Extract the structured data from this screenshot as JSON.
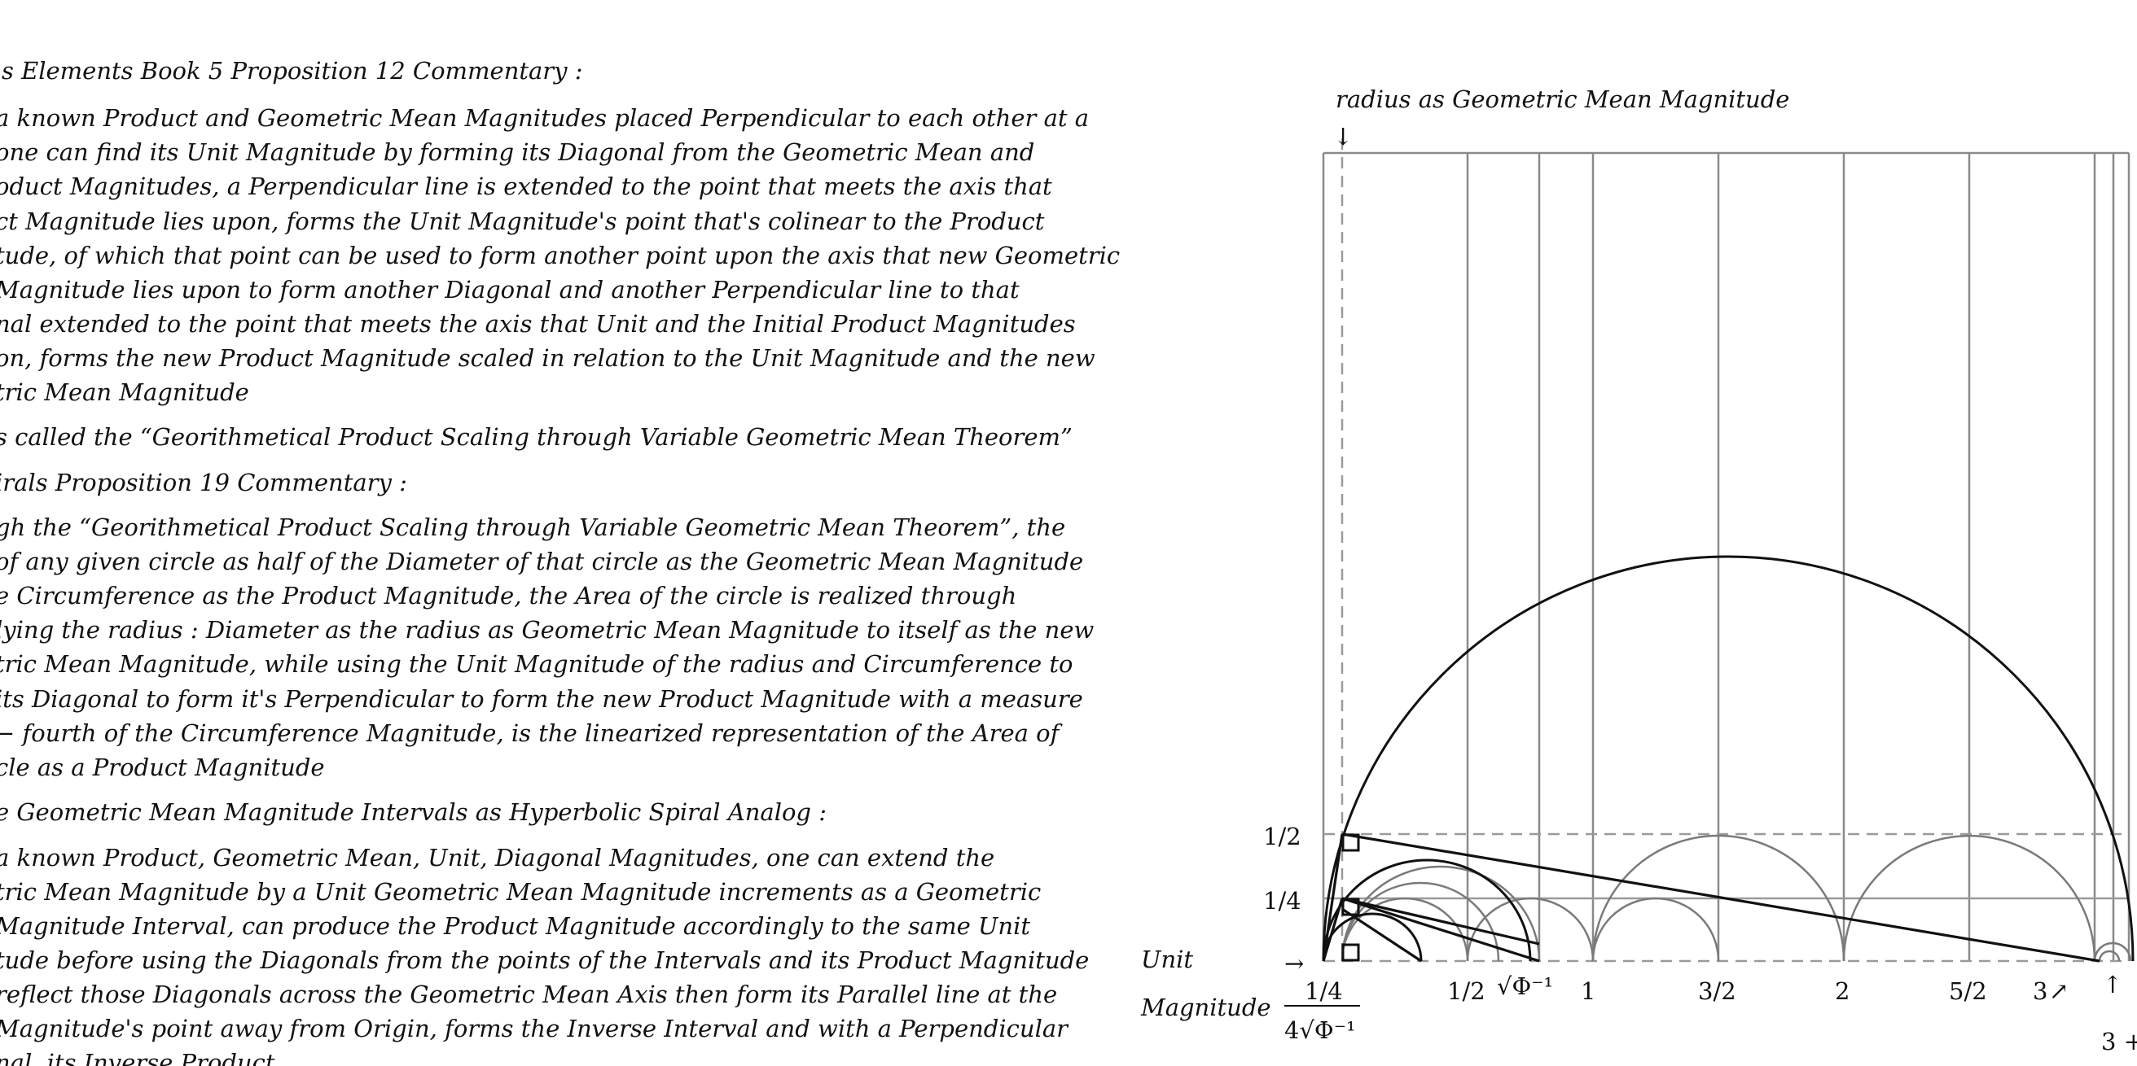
{
  "text_lines": [
    {
      "id": "l1",
      "text": "'s Elements Book 5 Proposition 12 Commentary :"
    },
    {
      "id": "l2",
      "text": "a known Product and Geometric Mean Magnitudes placed Perpendicular to each other at a"
    },
    {
      "id": "l3",
      "text": "one can find its Unit Magnitude by forming its Diagonal from the Geometric Mean and"
    },
    {
      "id": "l4",
      "text": "oduct Magnitudes, a Perpendicular line is extended to the point that meets the axis that"
    },
    {
      "id": "l5",
      "text": "ct Magnitude lies upon, forms the Unit Magnitude's point that's colinear to the Product"
    },
    {
      "id": "l6",
      "text": "tude, of which that point can be used to form another point upon the axis that new Geometric"
    },
    {
      "id": "l7",
      "text": "Magnitude lies upon to form another Diagonal and another Perpendicular line to that"
    },
    {
      "id": "l8",
      "text": "nal extended to the point that meets the axis that Unit and the Initial Product Magnitudes"
    },
    {
      "id": "l9",
      "text": "on, forms the new Product Magnitude scaled in relation to the Unit Magnitude and the new"
    },
    {
      "id": "l10",
      "text": "tric Mean Magnitude"
    },
    {
      "id": "l11",
      "text": "s called the “Georithmetical Product Scaling through Variable Geometric Mean Theorem”"
    },
    {
      "id": "l12",
      "text": "irals Proposition 19 Commentary :"
    },
    {
      "id": "l13",
      "text": "gh the “Georithmetical Product Scaling through Variable Geometric Mean Theorem”, the"
    },
    {
      "id": "l14",
      "text": "of any given circle as half of the Diameter of that circle as the Geometric Mean Magnitude"
    },
    {
      "id": "l15",
      "text": "e Circumference as the Product Magnitude, the Area of the circle is realized through"
    },
    {
      "id": "l16",
      "text": "lying the radius : Diameter as the radius as Geometric Mean Magnitude to itself as the new"
    },
    {
      "id": "l17",
      "text": "tric Mean Magnitude, while using the Unit Magnitude of the radius and Circumference to"
    },
    {
      "id": "l18",
      "text": "its Diagonal to form it's Perpendicular to form the new Product Magnitude with a measure"
    },
    {
      "id": "l19",
      "text": "− fourth of the Circumference Magnitude, is the linearized representation of the Area of"
    },
    {
      "id": "l20",
      "text": "cle as a Product Magnitude"
    },
    {
      "id": "l21",
      "text": "e Geometric Mean Magnitude Intervals as Hyperbolic Spiral Analog :"
    },
    {
      "id": "l22",
      "text": "a known Product, Geometric Mean, Unit, Diagonal Magnitudes, one can extend the"
    },
    {
      "id": "l23",
      "text": "tric Mean Magnitude by a Unit Geometric Mean Magnitude increments as a Geometric"
    },
    {
      "id": "l24",
      "text": "Magnitude Interval, can produce the Product Magnitude accordingly to the same Unit"
    },
    {
      "id": "l25",
      "text": "tude before using the Diagonals from the points of the Intervals and its Product Magnitude"
    },
    {
      "id": "l26",
      "text": "reflect those Diagonals across the Geometric Mean Axis then form its Parallel line at the"
    },
    {
      "id": "l27",
      "text": "Magnitude's point away from Origin, forms the Inverse Interval and with a Perpendicular"
    },
    {
      "id": "l28",
      "text": "nal, its Inverse Product"
    }
  ],
  "figure": {
    "top_label": "radius as Geometric Mean Magnitude",
    "arrow_down": "↓",
    "y_label_half": "1/2",
    "y_label_quarter": "1/4",
    "unit_label": "Unit",
    "magnitude_label": "Magnitude",
    "arrow_right": "→",
    "x_quarter": "1/4",
    "x_quarter_den": "4√Φ⁻¹",
    "x_half": "1/2",
    "x_sqrt": "√Φ⁻¹",
    "x_one": "1",
    "x_three_half": "3/2",
    "x_two": "2",
    "x_five_half": "5/2",
    "x_three": "3",
    "arrow_ne": "↗",
    "arrow_up": "↑",
    "x_bottom_right": "3 +"
  },
  "colors": {
    "ink": "#111111",
    "grid": "#8a8a8a",
    "dash": "#9a9a9a"
  }
}
